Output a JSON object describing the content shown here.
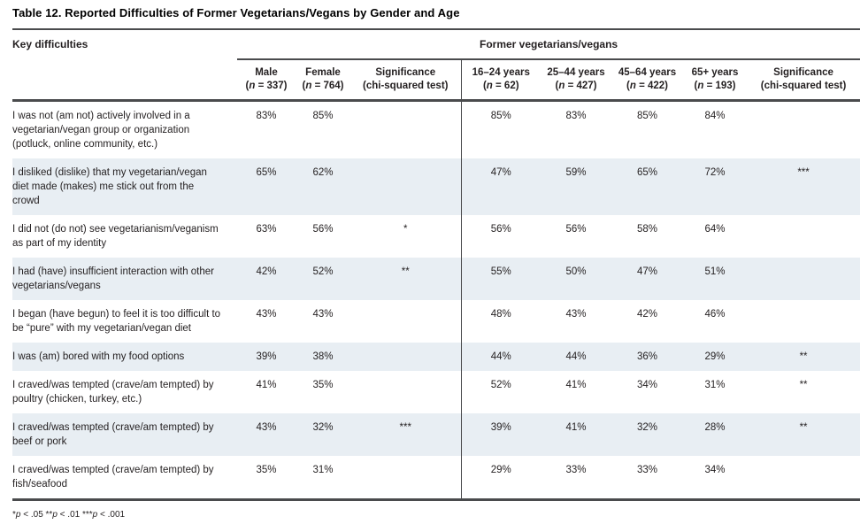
{
  "title": "Table 12. Reported Difficulties of Former Vegetarians/Vegans by Gender and Age",
  "table": {
    "row_header": "Key difficulties",
    "group_header": "Former vegetarians/vegans",
    "columns": [
      {
        "label": "Male",
        "sub": "(n = 337)"
      },
      {
        "label": "Female",
        "sub": "(n = 764)"
      },
      {
        "label": "Significance",
        "sub": "(chi-squared test)"
      },
      {
        "label": "16–24 years",
        "sub": "(n = 62)"
      },
      {
        "label": "25–44 years",
        "sub": "(n = 427)"
      },
      {
        "label": "45–64 years",
        "sub": "(n = 422)"
      },
      {
        "label": "65+ years",
        "sub": "(n = 193)"
      },
      {
        "label": "Significance",
        "sub": "(chi-squared test)"
      }
    ],
    "rows": [
      {
        "difficulty": "I was not (am not) actively involved in a vegetarian/vegan group or organization (potluck, online community, etc.)",
        "values": [
          "83%",
          "85%",
          "",
          "85%",
          "83%",
          "85%",
          "84%",
          ""
        ]
      },
      {
        "difficulty": "I disliked (dislike) that my vegetarian/vegan diet made (makes) me stick out from the crowd",
        "values": [
          "65%",
          "62%",
          "",
          "47%",
          "59%",
          "65%",
          "72%",
          "***"
        ]
      },
      {
        "difficulty": "I did not (do not) see vegetarianism/veganism as part of my identity",
        "values": [
          "63%",
          "56%",
          "*",
          "56%",
          "56%",
          "58%",
          "64%",
          ""
        ]
      },
      {
        "difficulty": "I had (have) insufficient interaction with other vegetarians/vegans",
        "values": [
          "42%",
          "52%",
          "**",
          "55%",
          "50%",
          "47%",
          "51%",
          ""
        ]
      },
      {
        "difficulty": "I began (have begun) to feel it is too difficult to be “pure” with my vegetarian/vegan diet",
        "values": [
          "43%",
          "43%",
          "",
          "48%",
          "43%",
          "42%",
          "46%",
          ""
        ]
      },
      {
        "difficulty": "I was (am) bored with my food options",
        "values": [
          "39%",
          "38%",
          "",
          "44%",
          "44%",
          "36%",
          "29%",
          "**"
        ]
      },
      {
        "difficulty": "I craved/was tempted (crave/am tempted) by poultry (chicken, turkey, etc.)",
        "values": [
          "41%",
          "35%",
          "",
          "52%",
          "41%",
          "34%",
          "31%",
          "**"
        ]
      },
      {
        "difficulty": "I craved/was tempted (crave/am tempted) by beef or pork",
        "values": [
          "43%",
          "32%",
          "***",
          "39%",
          "41%",
          "32%",
          "28%",
          "**"
        ]
      },
      {
        "difficulty": "I craved/was tempted (crave/am tempted) by fish/seafood",
        "values": [
          "35%",
          "31%",
          "",
          "29%",
          "33%",
          "33%",
          "34%",
          ""
        ]
      }
    ]
  },
  "footnote": "*p < .05 **p < .01 ***p < .001",
  "colors": {
    "shaded_row": "#e8eef3",
    "rule": "#4a4b4d",
    "text": "#231f20"
  }
}
